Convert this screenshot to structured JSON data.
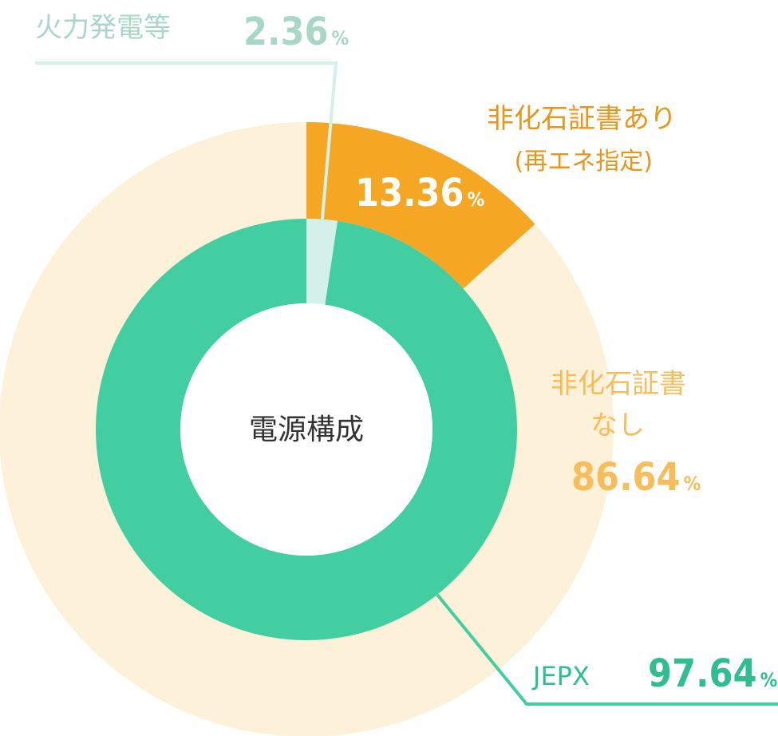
{
  "chart_data": {
    "type": "pie",
    "variant": "nested-donut",
    "center_label": "電源構成",
    "outer_ring": [
      {
        "name": "非化石証書あり",
        "sub": "(再エネ指定)",
        "value": 13.36,
        "value_text": "13.36",
        "unit": "%",
        "color": "#f5a623",
        "label_color": "#e8951a",
        "value_color": "#ffffff"
      },
      {
        "name": "非化石証書",
        "sub": "なし",
        "value": 86.64,
        "value_text": "86.64",
        "unit": "%",
        "color": "#fdf1d9",
        "label_color": "#f7bd5a",
        "value_color": "#f7bd5a"
      }
    ],
    "inner_ring": [
      {
        "name": "火力発電等",
        "value": 2.36,
        "value_text": "2.36",
        "unit": "%",
        "color": "#d3f1e8",
        "label_color": "#a9d7c6",
        "value_color": "#a9d7c6"
      },
      {
        "name": "JEPX",
        "value": 97.64,
        "value_text": "97.64",
        "unit": "%",
        "color": "#42cea0",
        "label_color": "#2fbf8f",
        "value_color": "#2fbf8f"
      }
    ]
  }
}
